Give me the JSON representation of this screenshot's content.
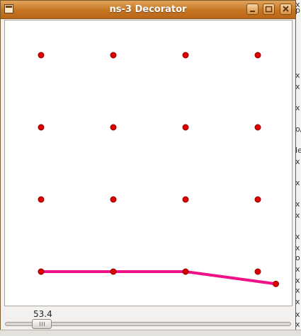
{
  "window": {
    "title": "ns-3 Decorator",
    "buttons": {
      "minimize": "minimize",
      "maximize": "maximize",
      "close": "close"
    }
  },
  "colors": {
    "title_bar": "#c67521",
    "node": "#dd0000",
    "node_outline": "#8a0000",
    "link": "#ee1187"
  },
  "network": {
    "nodes": [
      {
        "id": 0,
        "col": 0,
        "row": 0
      },
      {
        "id": 1,
        "col": 1,
        "row": 0
      },
      {
        "id": 2,
        "col": 2,
        "row": 0
      },
      {
        "id": 3,
        "col": 3,
        "row": 0
      },
      {
        "id": 4,
        "col": 0,
        "row": 1
      },
      {
        "id": 5,
        "col": 1,
        "row": 1
      },
      {
        "id": 6,
        "col": 2,
        "row": 1
      },
      {
        "id": 7,
        "col": 3,
        "row": 1
      },
      {
        "id": 8,
        "col": 0,
        "row": 2
      },
      {
        "id": 9,
        "col": 1,
        "row": 2
      },
      {
        "id": 10,
        "col": 2,
        "row": 2
      },
      {
        "id": 11,
        "col": 3,
        "row": 2
      },
      {
        "id": 12,
        "col": 0,
        "row": 3
      },
      {
        "id": 13,
        "col": 1,
        "row": 3
      },
      {
        "id": 14,
        "col": 2,
        "row": 3
      },
      {
        "id": 15,
        "col": 3,
        "row": 3
      },
      {
        "id": 16,
        "col": 3.25,
        "row": 3.17
      }
    ],
    "links": [
      [
        12,
        13
      ],
      [
        13,
        14
      ],
      [
        14,
        16
      ]
    ]
  },
  "slider": {
    "value": "53.4"
  },
  "background_fragments": [
    "p",
    "x",
    "x",
    "x",
    "o/",
    "le",
    "x",
    "x",
    "x",
    "x",
    "x",
    "x",
    "o",
    "x",
    "x",
    "x",
    "x",
    "x",
    "x",
    "x"
  ]
}
